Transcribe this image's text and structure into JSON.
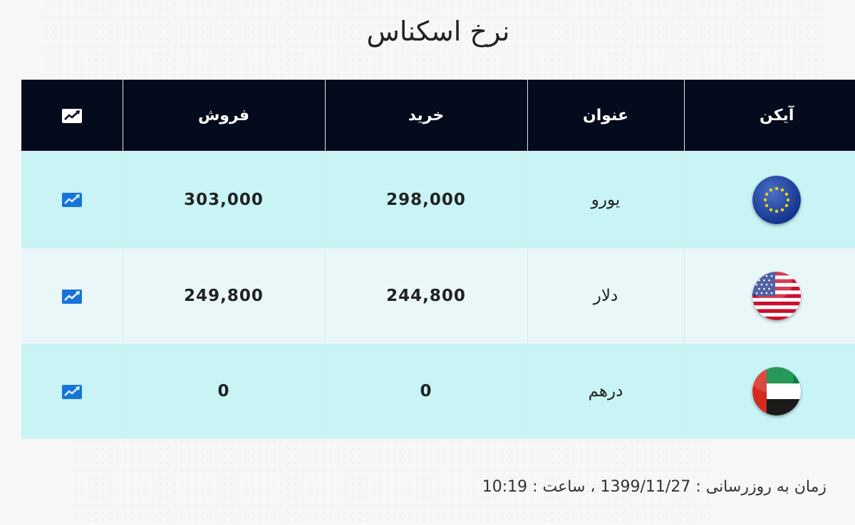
{
  "page_title": "نرخ اسکناس",
  "table": {
    "headers": {
      "icon": "آیکن",
      "title": "عنوان",
      "buy": "خرید",
      "sell": "فروش",
      "chart_icon": "chart-trend-icon"
    },
    "rows": [
      {
        "icon": "eu-flag-icon",
        "title": "یورو",
        "buy": "298,000",
        "sell": "303,000",
        "chart_icon": "chart-trend-icon"
      },
      {
        "icon": "us-flag-icon",
        "title": "دلار",
        "buy": "244,800",
        "sell": "249,800",
        "chart_icon": "chart-trend-icon"
      },
      {
        "icon": "uae-flag-icon",
        "title": "درهم",
        "buy": "0",
        "sell": "0",
        "chart_icon": "chart-trend-icon"
      }
    ]
  },
  "footer": {
    "update_prefix": "زمان به روزرسانی : ",
    "date": "1399/11/27",
    "separator": " ، ",
    "time_label": "ساعت : ",
    "time": "10:19"
  },
  "colors": {
    "header_bg": "#030b1c",
    "row_highlight": "#c8f4f6",
    "row_alt": "#e9f7f9",
    "link_icon": "#1a73d9"
  }
}
